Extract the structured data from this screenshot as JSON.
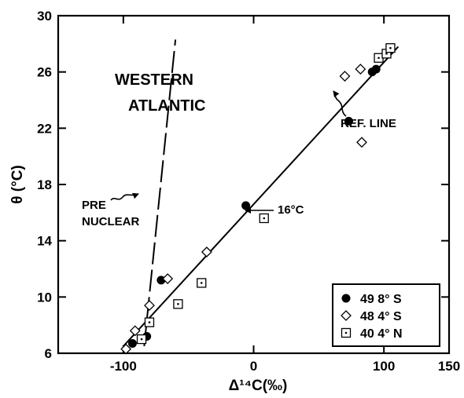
{
  "chart_data": {
    "type": "scatter",
    "xlabel": "Δ¹⁴C(‰)",
    "ylabel": "θ (°C)",
    "xlim": [
      -150,
      150
    ],
    "ylim": [
      6,
      30
    ],
    "x_ticks": [
      -100,
      0,
      100,
      150
    ],
    "x_tick_labels": [
      "-100",
      "0",
      "100",
      "150"
    ],
    "y_ticks": [
      6,
      10,
      14,
      18,
      22,
      26,
      30
    ],
    "y_tick_labels": [
      "6",
      "10",
      "14",
      "18",
      "22",
      "26",
      "30"
    ],
    "grid": false,
    "legend_position": "bottom-right",
    "series": [
      {
        "name": "49 8° S",
        "marker": "filled-circle",
        "points": [
          [
            -93,
            6.7
          ],
          [
            -82,
            7.2
          ],
          [
            -71,
            11.2
          ],
          [
            -6,
            16.5
          ],
          [
            73,
            22.5
          ],
          [
            91,
            26.0
          ],
          [
            94,
            26.2
          ]
        ]
      },
      {
        "name": "48 4° S",
        "marker": "diamond",
        "points": [
          [
            -98,
            6.3
          ],
          [
            -91,
            7.6
          ],
          [
            -80,
            9.4
          ],
          [
            -66,
            11.3
          ],
          [
            -36,
            13.2
          ],
          [
            70,
            25.7
          ],
          [
            82,
            26.2
          ],
          [
            83,
            21.0
          ]
        ]
      },
      {
        "name": "40 4° N",
        "marker": "dotted-square",
        "points": [
          [
            -86,
            7.0
          ],
          [
            -80,
            8.2
          ],
          [
            -58,
            9.5
          ],
          [
            -40,
            11.0
          ],
          [
            8,
            15.6
          ],
          [
            96,
            27.0
          ],
          [
            102,
            27.3
          ],
          [
            105,
            27.7
          ]
        ]
      }
    ],
    "lines": [
      {
        "label": "REF. LINE",
        "style": "solid",
        "points": [
          [
            -100,
            6.5
          ],
          [
            111,
            27.8
          ]
        ]
      },
      {
        "label": "PRE NUCLEAR",
        "style": "dashed",
        "points": [
          [
            -84,
            6.5
          ],
          [
            -60,
            28.3
          ]
        ]
      }
    ],
    "annotations": {
      "western": "WESTERN",
      "atlantic": "ATLANTIC",
      "ref_line": "REF. LINE",
      "pre": "PRE",
      "nuclear": "NUCLEAR",
      "sixteen": "16°C"
    }
  }
}
